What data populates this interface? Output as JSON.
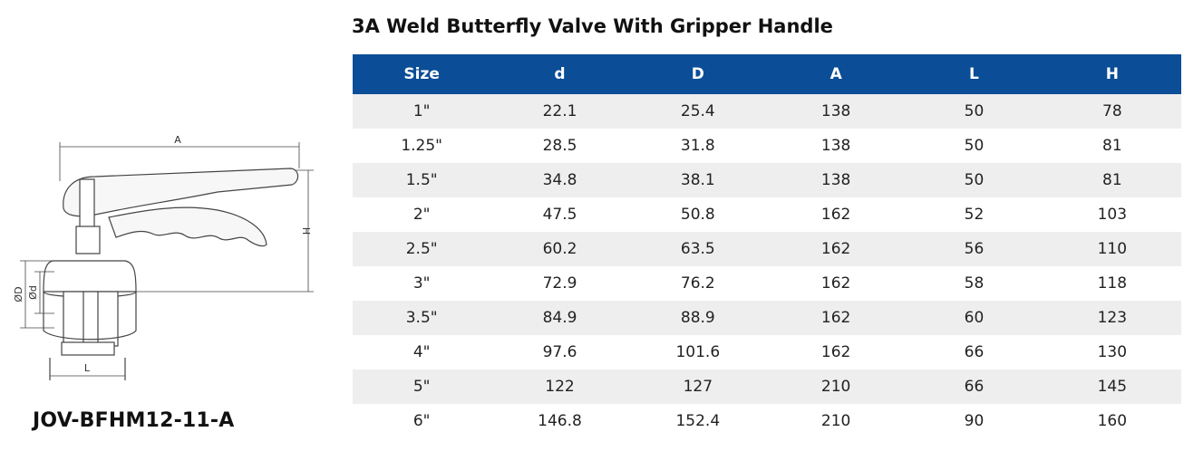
{
  "title": "3A Weld Butterfly Valve With Gripper Handle",
  "model": "JOV-BFHM12-11-A",
  "drawing_labels": {
    "a": "A",
    "h": "H",
    "od": "ØD",
    "id": "Ød",
    "l": "L"
  },
  "table": {
    "headers": [
      "Size",
      "d",
      "D",
      "A",
      "L",
      "H"
    ],
    "rows": [
      [
        "1\"",
        "22.1",
        "25.4",
        "138",
        "50",
        "78"
      ],
      [
        "1.25\"",
        "28.5",
        "31.8",
        "138",
        "50",
        "81"
      ],
      [
        "1.5\"",
        "34.8",
        "38.1",
        "138",
        "50",
        "81"
      ],
      [
        "2\"",
        "47.5",
        "50.8",
        "162",
        "52",
        "103"
      ],
      [
        "2.5\"",
        "60.2",
        "63.5",
        "162",
        "56",
        "110"
      ],
      [
        "3\"",
        "72.9",
        "76.2",
        "162",
        "58",
        "118"
      ],
      [
        "3.5\"",
        "84.9",
        "88.9",
        "162",
        "60",
        "123"
      ],
      [
        "4\"",
        "97.6",
        "101.6",
        "162",
        "66",
        "130"
      ],
      [
        "5\"",
        "122",
        "127",
        "210",
        "66",
        "145"
      ],
      [
        "6\"",
        "146.8",
        "152.4",
        "210",
        "90",
        "160"
      ]
    ]
  },
  "colors": {
    "header_bg": "#0b4d96",
    "header_text": "#ffffff",
    "row_alt": "#eeeeee"
  }
}
